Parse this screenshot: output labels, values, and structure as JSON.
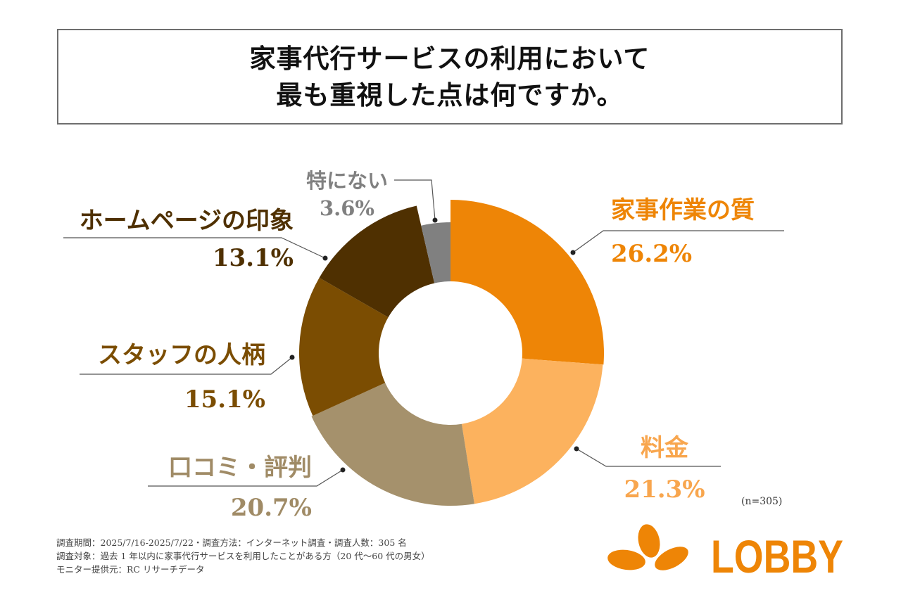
{
  "title": {
    "line1": "家事代行サービスの利用において",
    "line2": "最も重視した点は何ですか。"
  },
  "chart_data": {
    "type": "pie",
    "variant": "donut",
    "title": "家事代行サービスの利用において最も重視した点は何ですか。",
    "start": "12 o'clock",
    "direction": "clockwise",
    "unit": "%",
    "slices": [
      {
        "label": "家事作業の質",
        "value": 26.2,
        "display": "26.2%",
        "color": "#EE8506",
        "label_color": "#EE8506"
      },
      {
        "label": "料金",
        "value": 21.3,
        "display": "21.3%",
        "color": "#FCB25E",
        "label_color": "#F8A64E"
      },
      {
        "label": "口コミ・評判",
        "value": 20.7,
        "display": "20.7%",
        "color": "#A5916C",
        "label_color": "#A08B66"
      },
      {
        "label": "スタッフの人柄",
        "value": 15.1,
        "display": "15.1%",
        "color": "#7B4D02",
        "label_color": "#7B4D02"
      },
      {
        "label": "ホームページの印象",
        "value": 13.1,
        "display": "13.1%",
        "color": "#4F3001",
        "label_color": "#4F3001"
      },
      {
        "label": "特にない",
        "value": 3.6,
        "display": "3.6%",
        "color": "#808080",
        "label_color": "#808080"
      }
    ],
    "n_label": "(n=305)"
  },
  "footer": {
    "line1": "調査期間：2025/7/16-2025/7/22・調査方法：インターネット調査・調査人数：305 名",
    "line2": "調査対象：過去 1 年以内に家事代行サービスを利用したことがある方（20 代〜60 代の男女）",
    "line3": "モニター提供元：RC リサーチデータ"
  },
  "logo": {
    "text": "LOBBY",
    "color": "#EE8506"
  }
}
